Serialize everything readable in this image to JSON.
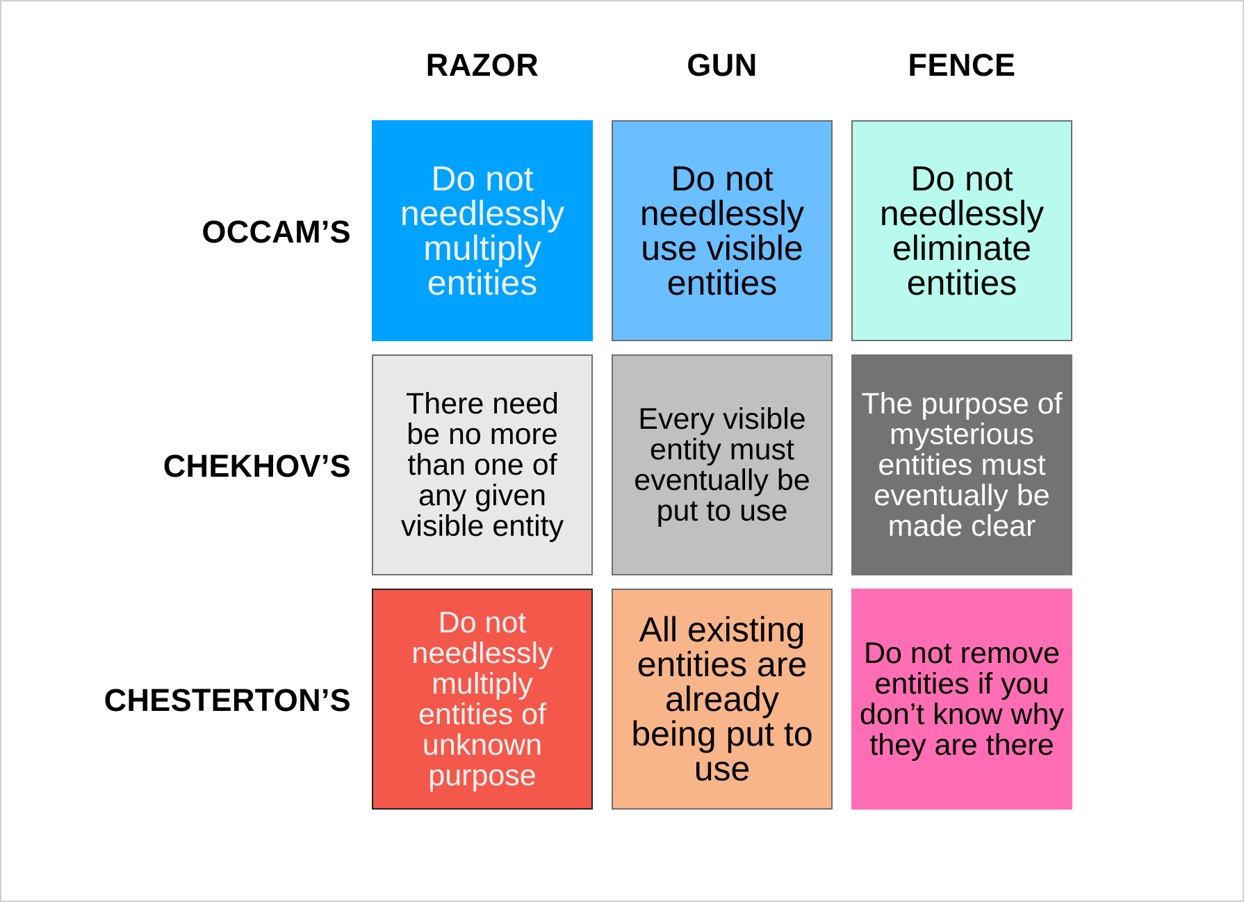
{
  "columns": {
    "razor": "RAZOR",
    "gun": "GUN",
    "fence": "FENCE"
  },
  "rows": {
    "occams": "OCCAM’S",
    "chekhovs": "CHEKHOV’S",
    "chestertons": "CHESTERTON’S"
  },
  "cells": {
    "occams_razor": {
      "text": "Do not needlessly multiply entities",
      "color": "#00a2ff"
    },
    "occams_gun": {
      "text": "Do not needlessly use visible entities",
      "color": "#6bbeff"
    },
    "occams_fence": {
      "text": "Do not needlessly eliminate entities",
      "color": "#b8fbee"
    },
    "chekhovs_razor": {
      "text": "There need be no more than one of any given visible entity",
      "color": "#e8e8e8"
    },
    "chekhovs_gun": {
      "text": "Every visible entity must eventually be put to use",
      "color": "#c0c0c0"
    },
    "chekhovs_fence": {
      "text": "The purpose of mysterious entities must eventually be made clear",
      "color": "#737373"
    },
    "chestertons_razor": {
      "text": "Do not needlessly multiply entities of unknown purpose",
      "color": "#f4584a"
    },
    "chestertons_gun": {
      "text": "All existing entities are already being put to use",
      "color": "#f8b58a"
    },
    "chestertons_fence": {
      "text": "Do not remove entities if you don’t know why they are there",
      "color": "#ff6eb4"
    }
  }
}
